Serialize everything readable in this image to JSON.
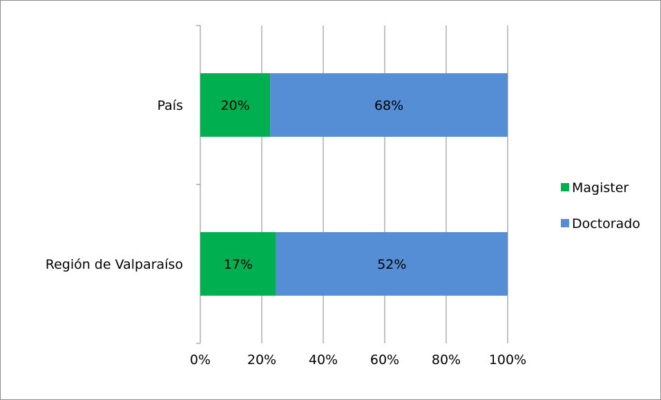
{
  "chart_data": {
    "type": "bar",
    "orientation": "horizontal",
    "stacked": "percent",
    "categories": [
      "País",
      "Región de Valparaíso"
    ],
    "series": [
      {
        "name": "Magister",
        "color": "#00B050",
        "values": [
          20,
          17
        ],
        "labels": [
          "20%",
          "17%"
        ]
      },
      {
        "name": "Doctorado",
        "color": "#558ED5",
        "values": [
          68,
          52
        ],
        "labels": [
          "68%",
          "52%"
        ]
      }
    ],
    "x_ticks": [
      "0%",
      "20%",
      "40%",
      "60%",
      "80%",
      "100%"
    ],
    "xlim": [
      0,
      100
    ],
    "title": "",
    "xlabel": "",
    "ylabel": "",
    "grid": "vertical",
    "legend": "right"
  }
}
